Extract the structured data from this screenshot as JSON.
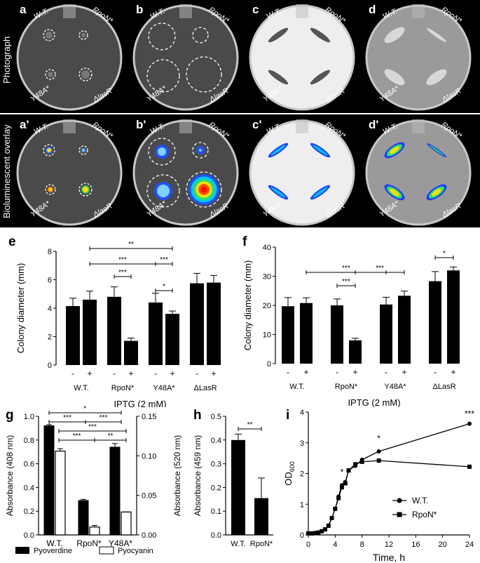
{
  "rows": {
    "top_label": "Photograph",
    "bottom_label": "Bioluminescent overlay"
  },
  "plates": [
    {
      "letter": "a",
      "tl": "W.T.",
      "tr": "RpoN*",
      "bl": "Y48A*",
      "br": "ΔlasR"
    },
    {
      "letter": "b",
      "tl": "W.T.",
      "tr": "RpoN*",
      "bl": "Y48A*",
      "br": "ΔlasR"
    },
    {
      "letter": "c",
      "tl": "W.T.",
      "tr": "RpoN*",
      "bl": "Y48A*",
      "br": "ΔlasR"
    },
    {
      "letter": "d",
      "tl": "W.T.",
      "tr": "RpoN*",
      "bl": "Y48A*",
      "br": "ΔlasR"
    },
    {
      "letter": "a'",
      "tl": "W.T.",
      "tr": "RpoN*",
      "bl": "Y48A*",
      "br": "ΔlasR"
    },
    {
      "letter": "b'",
      "tl": "W.T.",
      "tr": "RpoN*",
      "bl": "Y48A*",
      "br": "ΔlasR"
    },
    {
      "letter": "c'",
      "tl": "W.T.",
      "tr": "RpoN*",
      "bl": "Y48A*",
      "br": "ΔlasR"
    },
    {
      "letter": "d'",
      "tl": "W.T.",
      "tr": "RpoN*",
      "bl": "Y48A*",
      "br": "ΔlasR"
    }
  ],
  "chart_data": [
    {
      "letter": "e",
      "type": "bar",
      "ylabel": "Colony diameter (mm)",
      "xlabel": "IPTG (2 mM)",
      "ylim": [
        0,
        8
      ],
      "yticks": [
        0,
        2,
        4,
        6,
        8
      ],
      "groups": [
        "W.T.",
        "RpoN*",
        "Y48A*",
        "ΔLasR"
      ],
      "sub": [
        "-",
        "+"
      ],
      "values": [
        4.15,
        4.6,
        4.8,
        1.7,
        4.4,
        3.6,
        5.75,
        5.8
      ],
      "errors": [
        0.55,
        0.6,
        0.7,
        0.2,
        0.65,
        0.2,
        0.7,
        0.5
      ],
      "sig": [
        {
          "label": "**",
          "from": 1,
          "to": 5
        },
        {
          "label": "***",
          "from": 1,
          "to": 4
        },
        {
          "label": "***",
          "from": 4,
          "to": 5
        },
        {
          "label": "***",
          "from": 2,
          "to": 3
        },
        {
          "label": "*",
          "from": 4,
          "to": 5
        }
      ]
    },
    {
      "letter": "f",
      "type": "bar",
      "ylabel": "Colony diameter (mm)",
      "xlabel": "IPTG (2 mM)",
      "ylim": [
        0,
        40
      ],
      "yticks": [
        0,
        10,
        20,
        30,
        40
      ],
      "groups": [
        "W.T.",
        "RpoN*",
        "Y48A*",
        "ΔLasR"
      ],
      "sub": [
        "-",
        "+"
      ],
      "values": [
        19.7,
        20.8,
        20.0,
        8.0,
        20.3,
        23.3,
        28.3,
        32.0
      ],
      "errors": [
        3.0,
        1.8,
        2.2,
        0.7,
        2.5,
        1.6,
        3.3,
        1.2
      ],
      "sig": [
        {
          "label": "***",
          "from": 1,
          "to": 4
        },
        {
          "label": "***",
          "from": 2,
          "to": 3
        },
        {
          "label": "***",
          "from": 3,
          "to": 5
        },
        {
          "label": "*",
          "from": 6,
          "to": 7
        }
      ]
    },
    {
      "letter": "g",
      "type": "bar",
      "ylabel": "Absorbance (408 nm)",
      "y2label": "Absorbance (520 nm)",
      "ylim": [
        0,
        1.0
      ],
      "yticks": [
        "0.0",
        "0.2",
        "0.4",
        "0.6",
        "0.8",
        "1.0"
      ],
      "y2lim": [
        0,
        0.15
      ],
      "y2ticks": [
        "0.00",
        "0.05",
        "0.10",
        "0.15"
      ],
      "categories": [
        "W.T.",
        "RpoN*",
        "Y48A*"
      ],
      "series": [
        {
          "name": "Pyoverdine",
          "values": [
            0.92,
            0.29,
            0.74
          ],
          "errors": [
            0.01,
            0.01,
            0.03
          ],
          "color": "#000000"
        },
        {
          "name": "Pyocyanin",
          "values": [
            0.106,
            0.01,
            0.029
          ],
          "errors": [
            0.003,
            0.002,
            0.0
          ],
          "color": "#ffffff"
        }
      ],
      "sig_labels": [
        "*",
        "***",
        "***",
        "***",
        "***",
        "**"
      ]
    },
    {
      "letter": "h",
      "type": "bar",
      "ylabel": "Absorbance (459 nm)",
      "ylim": [
        0,
        0.5
      ],
      "yticks": [
        "0.0",
        "0.1",
        "0.2",
        "0.3",
        "0.4",
        "0.5"
      ],
      "categories": [
        "W.T.",
        "RpoN*"
      ],
      "values": [
        0.4,
        0.155
      ],
      "errors": [
        0.025,
        0.085
      ],
      "sig": [
        {
          "label": "**",
          "from": 0,
          "to": 1
        }
      ]
    },
    {
      "letter": "i",
      "type": "line",
      "ylabel": "OD600",
      "xlabel": "Time, h",
      "xlim": [
        0,
        24
      ],
      "xticks": [
        0,
        4,
        8,
        12,
        16,
        20,
        24
      ],
      "ylim": [
        0,
        4
      ],
      "yticks": [
        0,
        1,
        2,
        3,
        4
      ],
      "series": [
        {
          "name": "W.T.",
          "marker": "circle",
          "x": [
            0,
            0.5,
            1,
            1.5,
            2,
            2.5,
            3,
            3.5,
            4,
            4.5,
            5,
            5.5,
            6,
            7,
            8,
            10.5,
            24
          ],
          "y": [
            0.05,
            0.05,
            0.06,
            0.08,
            0.12,
            0.18,
            0.3,
            0.55,
            0.85,
            1.25,
            1.62,
            1.72,
            2.1,
            2.25,
            2.45,
            2.72,
            3.62
          ]
        },
        {
          "name": "RpoN*",
          "marker": "square",
          "x": [
            0,
            0.5,
            1,
            1.5,
            2,
            2.5,
            3,
            3.5,
            4,
            4.5,
            5,
            5.5,
            6,
            7,
            8,
            10.5,
            24
          ],
          "y": [
            0.05,
            0.05,
            0.06,
            0.08,
            0.12,
            0.18,
            0.3,
            0.55,
            0.85,
            1.2,
            1.55,
            1.68,
            2.1,
            2.3,
            2.38,
            2.42,
            2.22
          ]
        }
      ],
      "sig": [
        {
          "label": "*",
          "x": 5
        },
        {
          "label": "*",
          "x": 10.5
        },
        {
          "label": "***",
          "x": 24
        }
      ]
    }
  ],
  "legend_g": [
    "Pyoverdine",
    "Pyocyanin"
  ],
  "text": {
    "e_minus": "-",
    "e_plus": "+",
    "ylabel_e": "Colony diameter (mm)",
    "ylabel_f": "Colony diameter (mm)",
    "ylabel_g": "Absorbance (408 nm)",
    "y2label_g": "Absorbance (520 nm)",
    "ylabel_h": "Absorbance (459 nm)",
    "ylabel_i": "OD",
    "ylabel_i_sub": "600",
    "xlabel_e": "IPTG (2 mM)",
    "xlabel_f": "IPTG (2 mM)",
    "xlabel_i": "Time, h"
  },
  "colors": {
    "bg_plate": "#000000",
    "bar": "#000000"
  }
}
